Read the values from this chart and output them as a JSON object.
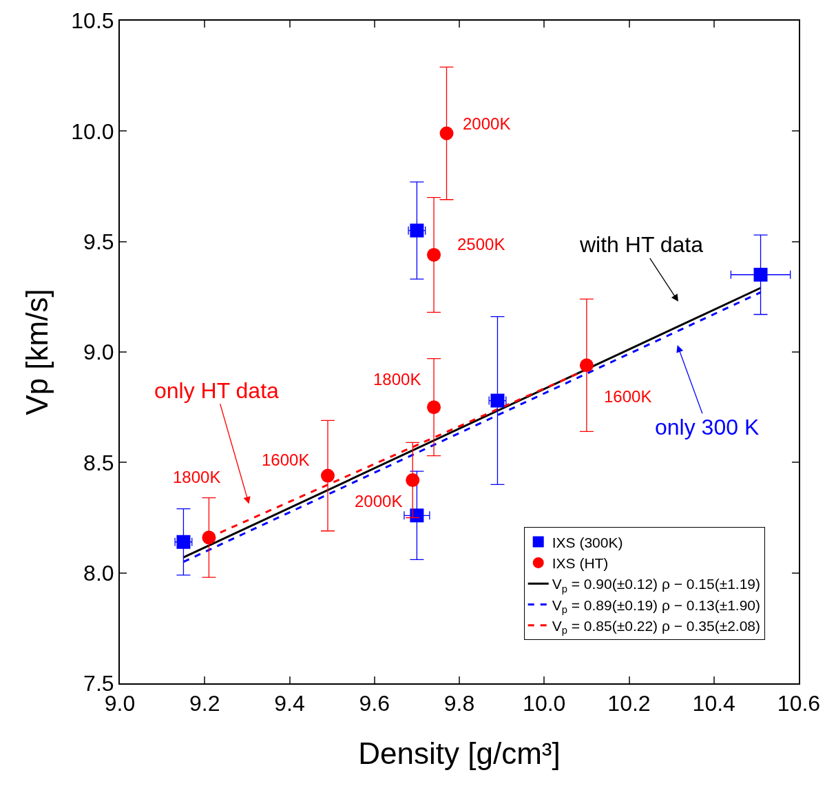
{
  "chart_data": {
    "type": "scatter",
    "xlabel": "Density [g/cm³]",
    "ylabel": "Vp [km/s]",
    "xlim": [
      9.0,
      10.6
    ],
    "xticks": [
      {
        "value": 9.0,
        "label": "9.0"
      },
      {
        "value": 9.2,
        "label": "9.2"
      },
      {
        "value": 9.4,
        "label": "9.4"
      },
      {
        "value": 9.6,
        "label": "9.6"
      },
      {
        "value": 9.8,
        "label": "9.8"
      },
      {
        "value": 10.0,
        "label": "10.0"
      },
      {
        "value": 10.2,
        "label": "10.2"
      },
      {
        "value": 10.4,
        "label": "10.4"
      },
      {
        "value": 10.6,
        "label": "10.6"
      }
    ],
    "ylim": [
      7.5,
      10.5
    ],
    "yticks": [
      {
        "value": 7.5,
        "label": "7.5"
      },
      {
        "value": 8.0,
        "label": "8.0"
      },
      {
        "value": 8.5,
        "label": "8.5"
      },
      {
        "value": 9.0,
        "label": "9.0"
      },
      {
        "value": 9.5,
        "label": "9.5"
      },
      {
        "value": 10.0,
        "label": "10.0"
      },
      {
        "value": 10.5,
        "label": "10.5"
      }
    ],
    "legend": "bottom right",
    "series": [
      {
        "name": "IXS (300K)",
        "marker": "square",
        "color": "#0000ff",
        "x": [
          9.15,
          9.7,
          9.7,
          9.89,
          10.51
        ],
        "values": [
          8.14,
          9.55,
          8.26,
          8.78,
          9.35
        ],
        "errors": [
          [
            7.99,
            8.29
          ],
          [
            9.33,
            9.77
          ],
          [
            8.06,
            8.46
          ],
          [
            8.4,
            9.16
          ],
          [
            9.17,
            9.53
          ]
        ],
        "xerrors": [
          0.02,
          0.02,
          0.03,
          0.02,
          0.07
        ]
      },
      {
        "name": "IXS (HT)",
        "marker": "circle",
        "color": "#ff0000",
        "x": [
          9.21,
          9.49,
          9.69,
          9.74,
          9.74,
          9.77,
          10.1
        ],
        "values": [
          8.16,
          8.44,
          8.42,
          8.75,
          9.44,
          9.99,
          8.94
        ],
        "errors": [
          [
            7.98,
            8.34
          ],
          [
            8.19,
            8.69
          ],
          [
            8.25,
            8.59
          ],
          [
            8.53,
            8.97
          ],
          [
            9.18,
            9.7
          ],
          [
            9.69,
            10.29
          ],
          [
            8.64,
            9.24
          ]
        ]
      },
      {
        "name": "V$_{p}$ = 0.90(±0.12) ρ − 0.15(±1.19)",
        "type": "line",
        "line_style": "solid",
        "color": "#000000",
        "x": [
          9.15,
          10.51
        ],
        "values": [
          8.07,
          9.29
        ]
      },
      {
        "name": "V$_{p}$ = 0.89(±0.19) ρ − 0.13(±1.90)",
        "type": "line",
        "line_style": "dashed",
        "color": "#0000ff",
        "x": [
          9.15,
          10.51
        ],
        "values": [
          8.05,
          9.27
        ]
      },
      {
        "name": "V$_{p}$ = 0.85(±0.22) ρ − 0.35(±2.08)",
        "type": "line",
        "line_style": "dashed",
        "color": "#ff0000",
        "x": [
          9.21,
          10.1
        ],
        "values": [
          8.16,
          8.92
        ]
      }
    ],
    "annotations": [
      "1800K",
      {
        "text": "1600K",
        "x": 9.49,
        "y": 8.44
      },
      {
        "text": "2000K",
        "x": 9.69,
        "y": 8.42
      },
      {
        "text": "1800K",
        "x": 9.74,
        "y": 8.75
      },
      {
        "text": "2500K",
        "x": 9.74,
        "y": 9.44
      },
      {
        "text": "2000K",
        "x": 9.77,
        "y": 9.99
      },
      {
        "text": "1600K",
        "x": 10.1,
        "y": 8.94
      },
      "only HT data",
      "with HT data",
      "only 300 K"
    ]
  }
}
